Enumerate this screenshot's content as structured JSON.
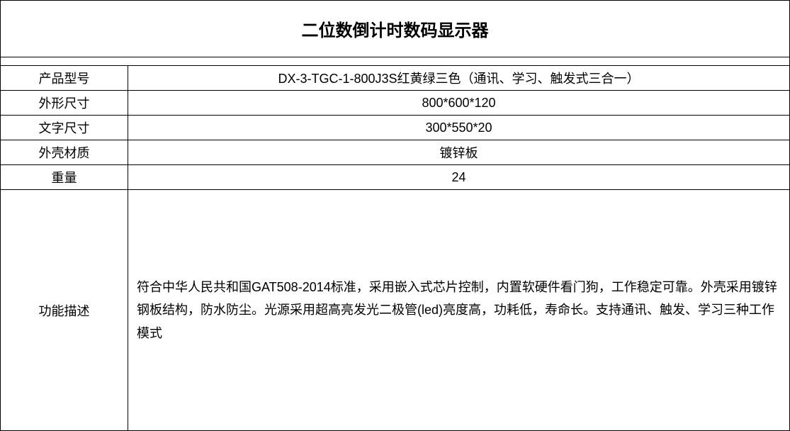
{
  "table": {
    "type": "table",
    "title": "二位数倒计时数码显示器",
    "title_fontsize": 24,
    "title_fontweight": "bold",
    "label_fontsize": 18,
    "value_fontsize": 18,
    "border_color": "#000000",
    "background_color": "#ffffff",
    "text_color": "#000000",
    "label_column_width": 180,
    "rows": [
      {
        "label": "产品型号",
        "value": "DX-3-TGC-1-800J3S红黄绿三色（通讯、学习、触发式三合一）"
      },
      {
        "label": "外形尺寸",
        "value": "800*600*120"
      },
      {
        "label": "文字尺寸",
        "value": "300*550*20"
      },
      {
        "label": "外壳材质",
        "value": "镀锌板"
      },
      {
        "label": "重量",
        "value": "24"
      }
    ],
    "description": {
      "label": "功能描述",
      "value": "符合中华人民共和国GAT508-2014标准，采用嵌入式芯片控制，内置软硬件看门狗，工作稳定可靠。外壳采用镀锌钢板结构，防水防尘。光源采用超高亮发光二极管(led)亮度高，功耗低，寿命长。支持通讯、触发、学习三种工作模式"
    }
  }
}
